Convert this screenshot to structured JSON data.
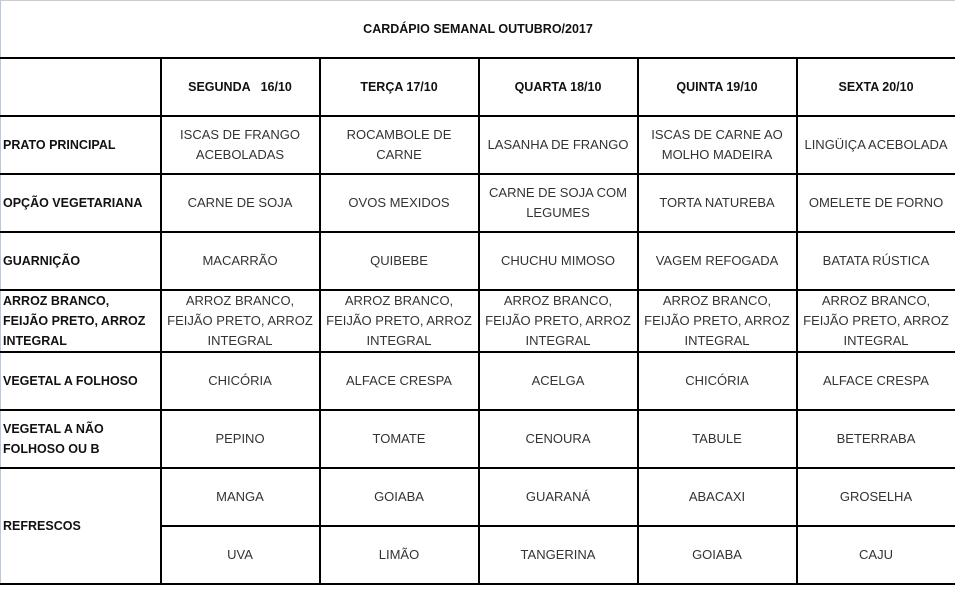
{
  "title": "CARDÁPIO SEMANAL OUTUBRO/2017",
  "days": [
    "SEGUNDA   16/10",
    "TERÇA 17/10",
    "QUARTA 18/10",
    "QUINTA 19/10",
    "SEXTA 20/10"
  ],
  "rows": [
    {
      "label": "PRATO PRINCIPAL",
      "cells": [
        "ISCAS DE FRANGO ACEBOLADAS",
        "ROCAMBOLE DE CARNE",
        "LASANHA DE FRANGO",
        "ISCAS DE CARNE AO MOLHO MADEIRA",
        "LINGÜIÇA ACEBOLADA"
      ]
    },
    {
      "label": "OPÇÃO VEGETARIANA",
      "cells": [
        "CARNE DE SOJA",
        "OVOS MEXIDOS",
        "CARNE DE SOJA COM LEGUMES",
        "TORTA NATUREBA",
        "OMELETE DE FORNO"
      ]
    },
    {
      "label": "GUARNIÇÃO",
      "cells": [
        "MACARRÃO",
        "QUIBEBE",
        "CHUCHU MIMOSO",
        "VAGEM REFOGADA",
        "BATATA RÚSTICA"
      ]
    },
    {
      "label": "ARROZ BRANCO, FEIJÃO PRETO, ARROZ INTEGRAL",
      "cells": [
        "ARROZ BRANCO, FEIJÃO PRETO, ARROZ INTEGRAL",
        "ARROZ BRANCO, FEIJÃO PRETO, ARROZ INTEGRAL",
        "ARROZ BRANCO, FEIJÃO PRETO, ARROZ INTEGRAL",
        "ARROZ BRANCO, FEIJÃO PRETO, ARROZ INTEGRAL",
        "ARROZ BRANCO, FEIJÃO PRETO, ARROZ INTEGRAL"
      ]
    },
    {
      "label": "VEGETAL A FOLHOSO",
      "cells": [
        "CHICÓRIA",
        "ALFACE CRESPA",
        "ACELGA",
        "CHICÓRIA",
        "ALFACE CRESPA"
      ]
    },
    {
      "label": "VEGETAL A NÃO FOLHOSO OU B",
      "cells": [
        "PEPINO",
        "TOMATE",
        "CENOURA",
        "TABULE",
        "BETERRABA"
      ]
    }
  ],
  "refrescos": {
    "label": "REFRESCOS",
    "row1": [
      "MANGA",
      "GOIABA",
      "GUARANÁ",
      "ABACAXI",
      "GROSELHA"
    ],
    "row2": [
      "UVA",
      "LIMÃO",
      "TANGERINA",
      "GOIABA",
      "CAJU"
    ]
  }
}
